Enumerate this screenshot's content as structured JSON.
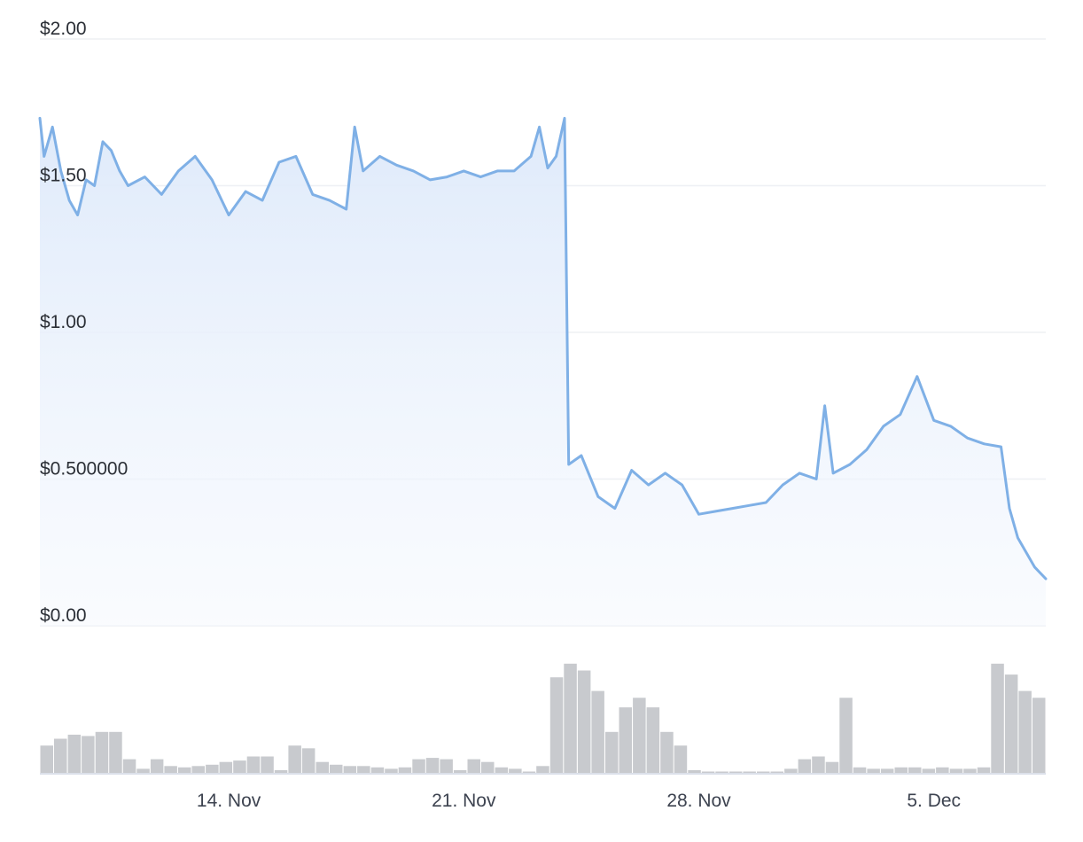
{
  "chart_data": {
    "type": "line",
    "title": "",
    "xlabel": "",
    "ylabel": "",
    "y_tick_labels": [
      "$0.00",
      "$0.500000",
      "$1.00",
      "$1.50",
      "$2.00"
    ],
    "y_tick_values": [
      0,
      0.5,
      1.0,
      1.5,
      2.0
    ],
    "ylim": [
      0,
      2.0
    ],
    "x_tick_labels": [
      "14. Nov",
      "21. Nov",
      "28. Nov",
      "5. Dec"
    ],
    "x_tick_values": [
      "2022-11-14",
      "2022-11-21",
      "2022-11-28",
      "2022-12-05"
    ],
    "xlim": [
      "2022-11-08 09:00",
      "2022-12-08 08:00"
    ],
    "grid": true,
    "legend": "none",
    "colors": {
      "price_line": "#7fb0e6",
      "price_fill": "#dde9fa",
      "volume": "#c8cace",
      "grid": "#eef0f4"
    },
    "series": [
      {
        "name": "",
        "x": [
          "2022-11-08 09:00",
          "2022-11-08 12:00",
          "2022-11-08 18:00",
          "2022-11-09 00:00",
          "2022-11-09 06:00",
          "2022-11-09 12:00",
          "2022-11-09 18:00",
          "2022-11-10 00:00",
          "2022-11-10 06:00",
          "2022-11-10 12:00",
          "2022-11-10 18:00",
          "2022-11-11 00:00",
          "2022-11-11 12:00",
          "2022-11-12 00:00",
          "2022-11-12 12:00",
          "2022-11-13 00:00",
          "2022-11-13 12:00",
          "2022-11-14 00:00",
          "2022-11-14 12:00",
          "2022-11-15 00:00",
          "2022-11-15 12:00",
          "2022-11-16 00:00",
          "2022-11-16 12:00",
          "2022-11-17 00:00",
          "2022-11-17 12:00",
          "2022-11-17 18:00",
          "2022-11-18 00:00",
          "2022-11-18 12:00",
          "2022-11-19 00:00",
          "2022-11-19 12:00",
          "2022-11-20 00:00",
          "2022-11-20 12:00",
          "2022-11-21 00:00",
          "2022-11-21 12:00",
          "2022-11-22 00:00",
          "2022-11-22 12:00",
          "2022-11-23 00:00",
          "2022-11-23 06:00",
          "2022-11-23 12:00",
          "2022-11-23 18:00",
          "2022-11-24 00:00",
          "2022-11-24 03:00",
          "2022-11-24 12:00",
          "2022-11-25 00:00",
          "2022-11-25 12:00",
          "2022-11-26 00:00",
          "2022-11-26 12:00",
          "2022-11-27 00:00",
          "2022-11-27 12:00",
          "2022-11-28 00:00",
          "2022-11-28 12:00",
          "2022-11-29 00:00",
          "2022-11-29 12:00",
          "2022-11-30 00:00",
          "2022-11-30 12:00",
          "2022-12-01 00:00",
          "2022-12-01 12:00",
          "2022-12-01 18:00",
          "2022-12-02 00:00",
          "2022-12-02 12:00",
          "2022-12-03 00:00",
          "2022-12-03 12:00",
          "2022-12-04 00:00",
          "2022-12-04 12:00",
          "2022-12-05 00:00",
          "2022-12-05 12:00",
          "2022-12-06 00:00",
          "2022-12-06 12:00",
          "2022-12-07 00:00",
          "2022-12-07 06:00",
          "2022-12-07 12:00",
          "2022-12-08 00:00",
          "2022-12-08 08:00"
        ],
        "values": [
          1.73,
          1.6,
          1.7,
          1.55,
          1.45,
          1.4,
          1.52,
          1.5,
          1.65,
          1.62,
          1.55,
          1.5,
          1.53,
          1.47,
          1.55,
          1.6,
          1.52,
          1.4,
          1.48,
          1.45,
          1.58,
          1.6,
          1.47,
          1.45,
          1.42,
          1.7,
          1.55,
          1.6,
          1.57,
          1.55,
          1.52,
          1.53,
          1.55,
          1.53,
          1.55,
          1.55,
          1.6,
          1.7,
          1.56,
          1.6,
          1.73,
          0.55,
          0.58,
          0.44,
          0.4,
          0.53,
          0.48,
          0.52,
          0.48,
          0.38,
          0.39,
          0.4,
          0.41,
          0.42,
          0.48,
          0.52,
          0.5,
          0.75,
          0.52,
          0.55,
          0.6,
          0.68,
          0.72,
          0.85,
          0.7,
          0.68,
          0.64,
          0.62,
          0.61,
          0.4,
          0.3,
          0.2,
          0.16
        ]
      }
    ],
    "volume": {
      "values": [
        0.2,
        0.25,
        0.28,
        0.27,
        0.3,
        0.3,
        0.1,
        0.03,
        0.1,
        0.05,
        0.04,
        0.05,
        0.06,
        0.08,
        0.09,
        0.12,
        0.12,
        0.02,
        0.2,
        0.18,
        0.08,
        0.06,
        0.05,
        0.05,
        0.04,
        0.03,
        0.04,
        0.1,
        0.11,
        0.1,
        0.02,
        0.1,
        0.08,
        0.04,
        0.03,
        0.01,
        0.05,
        0.7,
        0.8,
        0.75,
        0.6,
        0.3,
        0.48,
        0.55,
        0.48,
        0.3,
        0.2,
        0.02,
        0.01,
        0.01,
        0.01,
        0.01,
        0.01,
        0.01,
        0.03,
        0.1,
        0.12,
        0.08,
        0.55,
        0.04,
        0.03,
        0.03,
        0.04,
        0.04,
        0.03,
        0.04,
        0.03,
        0.03,
        0.04,
        0.8,
        0.72,
        0.6,
        0.55
      ]
    }
  }
}
